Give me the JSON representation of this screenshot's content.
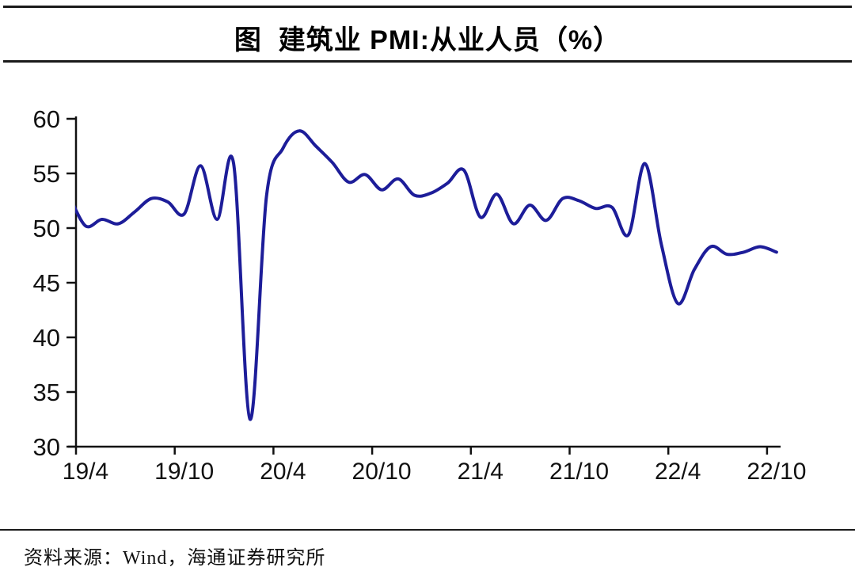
{
  "header": {
    "title": "图  建筑业 PMI:从业人员（%）"
  },
  "footer": {
    "source": "资料来源：Wind，海通证券研究所"
  },
  "chart_data": {
    "type": "line",
    "title": "图 建筑业 PMI:从业人员（%）",
    "xlabel": "",
    "ylabel": "",
    "unit": "%",
    "grid": false,
    "legend": "none",
    "line_color": "#1d1d99",
    "axis_color": "#111111",
    "ylim": [
      30,
      60
    ],
    "yticks": [
      30,
      35,
      40,
      45,
      50,
      55,
      60
    ],
    "xtick_labels": [
      "19/4",
      "19/10",
      "20/4",
      "20/10",
      "21/4",
      "21/10",
      "22/4",
      "22/10"
    ],
    "months_per_tick": 6,
    "series": [
      {
        "name": "建筑业PMI:从业人员",
        "start_offset": -1,
        "x": [
          "19/3",
          "19/4",
          "19/5",
          "19/6",
          "19/7",
          "19/8",
          "19/9",
          "19/10",
          "19/11",
          "19/12",
          "20/1",
          "20/2",
          "20/3",
          "20/4",
          "20/5",
          "20/6",
          "20/7",
          "20/8",
          "20/9",
          "20/10",
          "20/11",
          "20/12",
          "21/1",
          "21/2",
          "21/3",
          "21/4",
          "21/5",
          "21/6",
          "21/7",
          "21/8",
          "21/9",
          "21/10",
          "21/11",
          "21/12",
          "22/1",
          "22/2",
          "22/3",
          "22/4",
          "22/5",
          "22/6",
          "22/7",
          "22/8",
          "22/9",
          "22/10"
        ],
        "values": [
          53.0,
          50.2,
          50.8,
          50.4,
          51.5,
          52.7,
          52.4,
          51.3,
          55.7,
          50.8,
          55.9,
          32.5,
          52.9,
          57.3,
          58.9,
          57.5,
          56.0,
          54.2,
          54.9,
          53.5,
          54.5,
          53.0,
          53.2,
          54.1,
          55.3,
          51.0,
          53.1,
          50.4,
          52.1,
          50.7,
          52.7,
          52.5,
          51.8,
          51.9,
          49.4,
          55.9,
          48.5,
          43.1,
          46.2,
          48.3,
          47.6,
          47.8,
          48.3,
          47.8
        ]
      }
    ]
  }
}
